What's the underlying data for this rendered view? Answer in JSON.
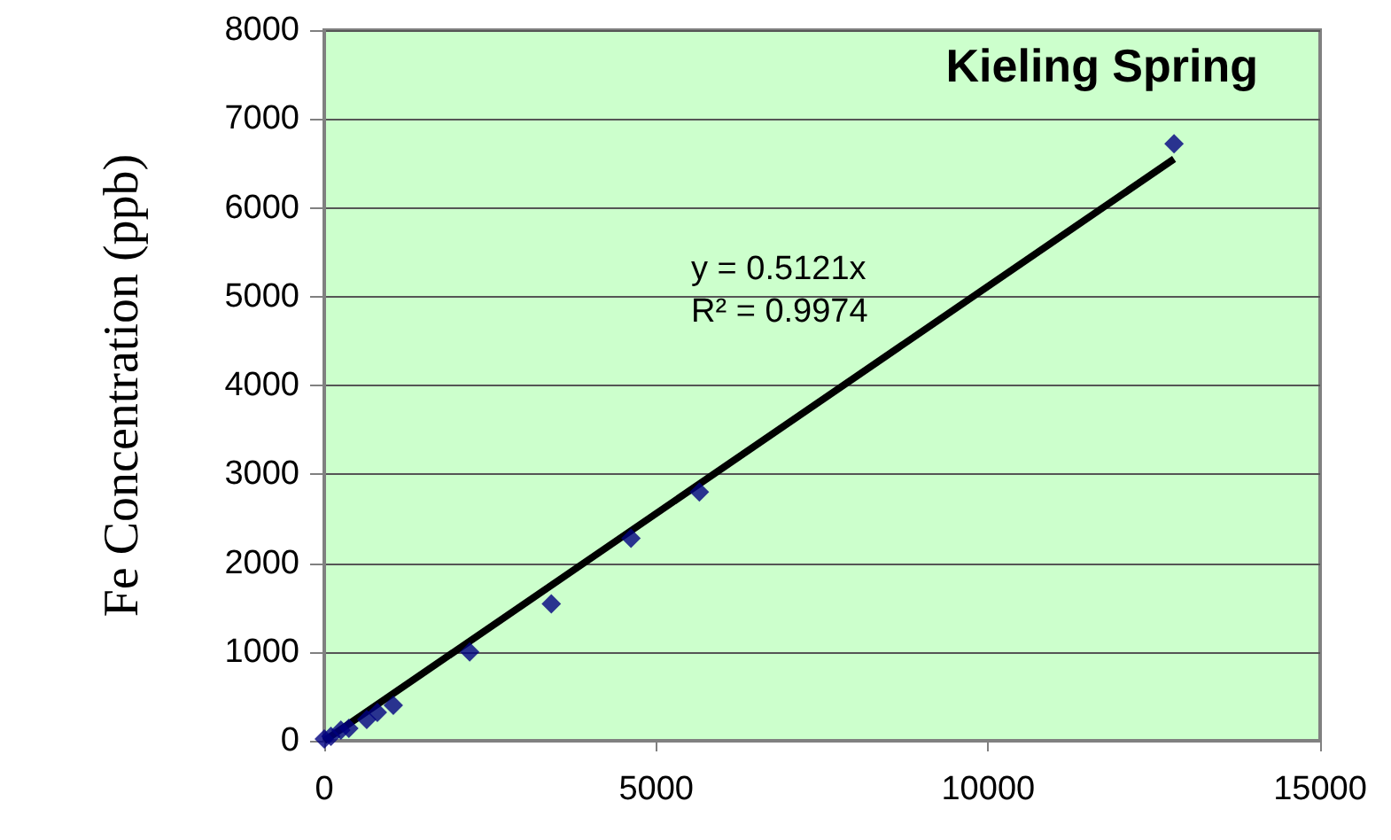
{
  "chart_data": {
    "type": "scatter",
    "title": "Kieling Spring",
    "ylabel": "Fe Concentration (ppb)",
    "annotations": [
      "y = 0.5121x",
      "R² = 0.9974"
    ],
    "series": [
      {
        "color": "#000080",
        "marker": "diamond",
        "x": [
          0,
          100,
          250,
          370,
          640,
          800,
          1040,
          2190,
          3420,
          4620,
          5650,
          12800
        ],
        "values": [
          20,
          50,
          120,
          140,
          240,
          320,
          400,
          1000,
          1540,
          2280,
          2800,
          6720
        ]
      },
      {
        "type": "line",
        "color": "#000000",
        "marker": "none",
        "x": [
          0,
          12800
        ],
        "values": [
          0,
          6550
        ]
      }
    ],
    "xlim": [
      0,
      15000
    ],
    "xticks": [
      0,
      5000,
      10000,
      15000
    ],
    "ylim": [
      0,
      8000
    ],
    "yticks": [
      0,
      1000,
      2000,
      3000,
      4000,
      5000,
      6000,
      7000,
      8000
    ],
    "grid": "y"
  }
}
